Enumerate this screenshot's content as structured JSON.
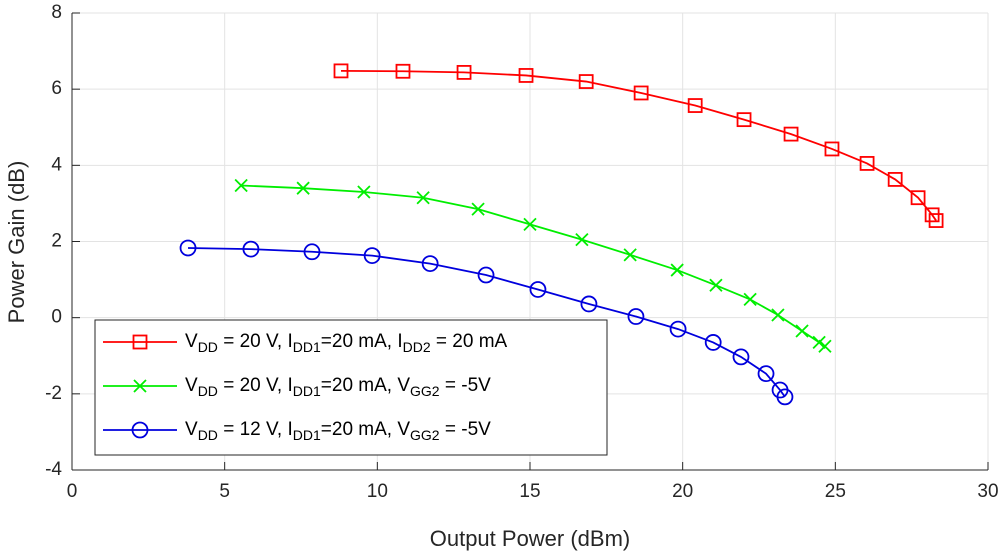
{
  "chart_data": {
    "type": "line",
    "xlabel": "Output Power (dBm)",
    "ylabel": "Power Gain (dB)",
    "xlim": [
      0,
      30
    ],
    "ylim": [
      -4,
      8
    ],
    "xticks": [
      0,
      5,
      10,
      15,
      20,
      25,
      30
    ],
    "yticks": [
      -4,
      -2,
      0,
      2,
      4,
      6,
      8
    ],
    "grid": true,
    "legend": "lower left",
    "series": [
      {
        "name": "VDD = 20 V, IDD1=20 mA, IDD2 = 20 mA",
        "color": "#ff0000",
        "marker": "square",
        "x": [
          8.81,
          10.84,
          12.84,
          14.87,
          16.84,
          18.64,
          20.41,
          22.01,
          23.55,
          24.89,
          26.04,
          26.96,
          27.71,
          28.17,
          28.3
        ],
        "values": [
          6.48,
          6.47,
          6.44,
          6.36,
          6.2,
          5.9,
          5.57,
          5.2,
          4.82,
          4.43,
          4.05,
          3.63,
          3.15,
          2.7,
          2.55
        ]
      },
      {
        "name": "VDD = 20 V, IDD1=20 mA, VGG2 = -5V",
        "color": "#00ee00",
        "marker": "x",
        "x": [
          5.54,
          7.57,
          9.56,
          11.5,
          13.3,
          15.0,
          16.7,
          18.28,
          19.82,
          21.09,
          22.21,
          23.12,
          23.91,
          24.47,
          24.66
        ],
        "values": [
          3.47,
          3.4,
          3.3,
          3.15,
          2.85,
          2.45,
          2.05,
          1.65,
          1.25,
          0.85,
          0.48,
          0.07,
          -0.35,
          -0.65,
          -0.75
        ]
      },
      {
        "name": "VDD = 12 V, IDD1=20 mA, VGG2 = -5V",
        "color": "#0000dd",
        "marker": "circle",
        "x": [
          3.8,
          5.86,
          7.86,
          9.83,
          11.73,
          13.56,
          15.26,
          16.93,
          18.47,
          19.85,
          21.0,
          21.91,
          22.73,
          23.19,
          23.35
        ],
        "values": [
          1.83,
          1.8,
          1.73,
          1.63,
          1.42,
          1.12,
          0.74,
          0.36,
          0.03,
          -0.3,
          -0.65,
          -1.03,
          -1.47,
          -1.9,
          -2.08
        ]
      }
    ]
  }
}
